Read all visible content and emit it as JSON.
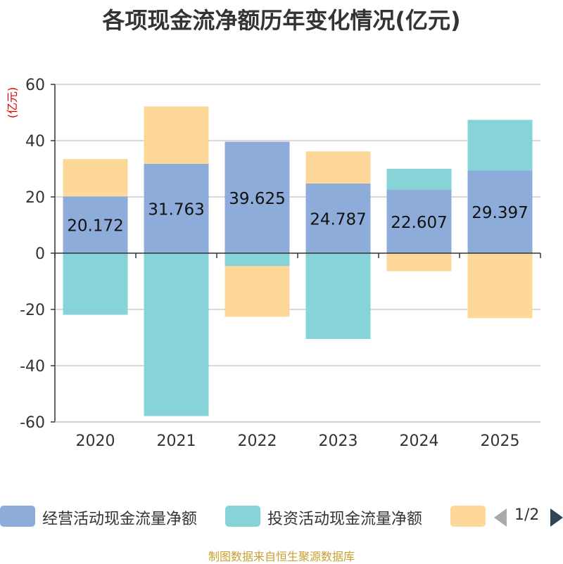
{
  "chart_data": {
    "type": "bar",
    "stacked": true,
    "title": "各项现金流净额历年变化情况(亿元)",
    "ylabel": "(亿元)",
    "categories": [
      "2020",
      "2021",
      "2022",
      "2023",
      "2024",
      "2025"
    ],
    "ylim": [
      -60,
      60
    ],
    "yticks": [
      60,
      40,
      20,
      0,
      -20,
      -40,
      -60
    ],
    "grid": true,
    "legend_position": "bottom",
    "series": [
      {
        "name": "经营活动现金流量净额",
        "color": "#8eacd9",
        "values": [
          20.172,
          31.763,
          39.625,
          24.787,
          22.607,
          29.397
        ],
        "data_labels": [
          "20.172",
          "31.763",
          "39.625",
          "24.787",
          "22.607",
          "29.397"
        ]
      },
      {
        "name": "投资活动现金流量净额",
        "color": "#86d4d8",
        "values": [
          -21.9,
          -57.9,
          -4.6,
          -30.5,
          7.4,
          18.0
        ]
      },
      {
        "name": "",
        "color": "#fed898",
        "values": [
          13.3,
          20.4,
          -18.0,
          11.4,
          -6.4,
          -23.1
        ]
      }
    ]
  },
  "legend": {
    "page_indicator": "1/2"
  },
  "footer": {
    "source": "制图数据来自恒生聚源数据库"
  }
}
